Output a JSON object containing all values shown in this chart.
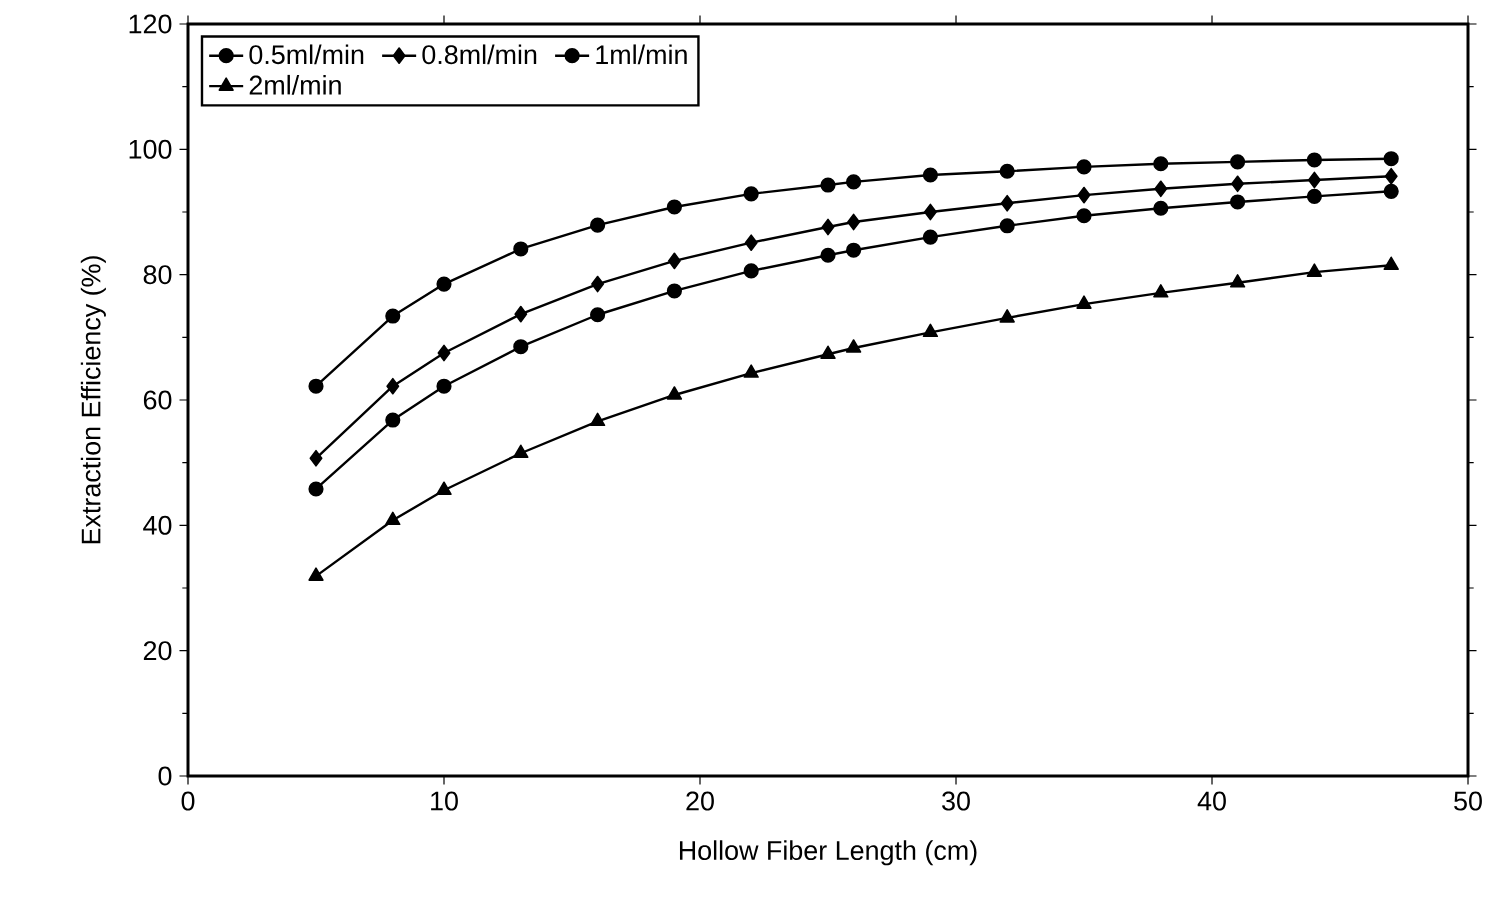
{
  "chart_data": {
    "type": "line",
    "xlabel": "Hollow Fiber Length (cm)",
    "ylabel": "Extraction Efficiency (%)",
    "x": [
      5,
      8,
      10,
      13,
      16,
      19,
      22,
      25,
      26,
      29,
      32,
      35,
      38,
      41,
      44,
      47
    ],
    "series": [
      {
        "name": "0.5ml/min",
        "color": "#000000",
        "marker": "circle",
        "values": [
          62.2,
          73.4,
          78.5,
          84.1,
          87.9,
          90.8,
          92.9,
          94.3,
          94.8,
          95.9,
          96.5,
          97.2,
          97.7,
          98.0,
          98.3,
          98.5
        ]
      },
      {
        "name": "0.8ml/min",
        "color": "#000000",
        "marker": "diamond",
        "values": [
          50.7,
          62.2,
          67.5,
          73.7,
          78.5,
          82.2,
          85.1,
          87.6,
          88.4,
          90.0,
          91.4,
          92.7,
          93.7,
          94.5,
          95.1,
          95.7
        ]
      },
      {
        "name": "1ml/min",
        "color": "#000000",
        "marker": "circle",
        "values": [
          45.8,
          56.8,
          62.2,
          68.5,
          73.6,
          77.4,
          80.6,
          83.1,
          83.9,
          86.0,
          87.8,
          89.4,
          90.6,
          91.6,
          92.5,
          93.3
        ]
      },
      {
        "name": "2ml/min",
        "color": "#000000",
        "marker": "triangle",
        "values": [
          31.9,
          40.8,
          45.6,
          51.5,
          56.6,
          60.8,
          64.3,
          67.3,
          68.3,
          70.8,
          73.1,
          75.3,
          77.1,
          78.7,
          80.4,
          81.5
        ]
      }
    ],
    "xlim": [
      0,
      50
    ],
    "ylim": [
      0,
      120
    ],
    "xticks": [
      0,
      10,
      20,
      30,
      40,
      50
    ],
    "yticks": [
      0,
      20,
      40,
      60,
      80,
      100,
      120
    ],
    "legend": "top left",
    "grid": false,
    "line_style": "solid"
  }
}
